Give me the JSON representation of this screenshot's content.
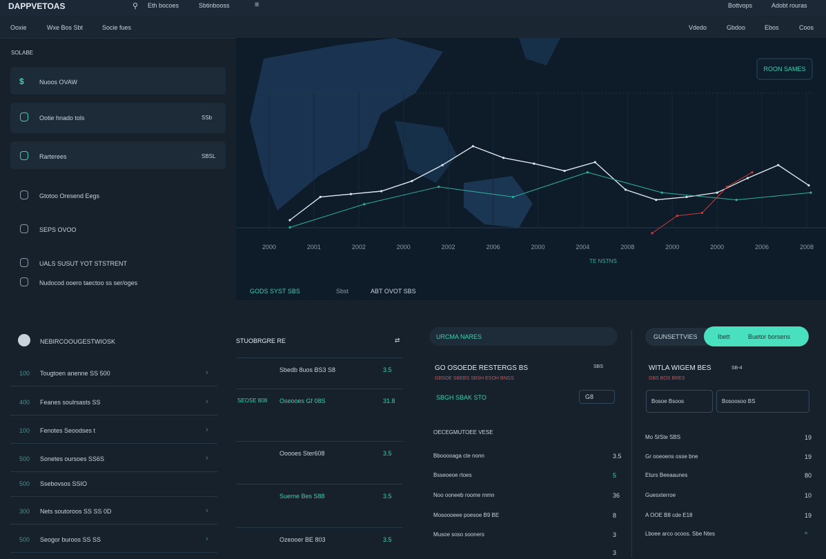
{
  "topbar": {
    "brand": "DAPPVETOAS",
    "search": "Eth bocoes",
    "tab": "Sbtinbooss",
    "right": [
      "Bottvops",
      "Adobt rouras"
    ]
  },
  "nav": {
    "left": [
      "Ooxie",
      "Wxe Bos Sbt",
      "Socie fues"
    ],
    "right": [
      "Vdedo",
      "Gbdoo",
      "Ebos",
      "Coos"
    ]
  },
  "sidebar": {
    "title": "SOLABE",
    "items": [
      {
        "icon": "$",
        "label": "Nuoos OVAW"
      },
      {
        "label": "Ootie hnado tols",
        "meta": "SSb"
      },
      {
        "label": "Rarterees",
        "meta": "SBSL"
      },
      {
        "label": "Gtotoo Oresend Eegs"
      },
      {
        "label": "SEPS OVOO"
      },
      {
        "label": "UALS SUSUT YOT STSTRENT"
      },
      {
        "label": "Nudocod ooero taectoo ss ser/oges"
      }
    ]
  },
  "chart": {
    "button": "ROON SAMES",
    "ylim": [
      0,
      100
    ],
    "x_labels": [
      "2000",
      "2001",
      "2002",
      "2000",
      "2002",
      "2006",
      "2000",
      "2004",
      "2008",
      "2000",
      "2000",
      "2006",
      "2008"
    ],
    "caption": "TE NSTNS",
    "series": [
      {
        "color": "#dfe6ee",
        "values": [
          10,
          26,
          28,
          30,
          37,
          48,
          61,
          53,
          49,
          44,
          50,
          31,
          24,
          26,
          29,
          39,
          48,
          34
        ]
      },
      {
        "color": "#2fb3a0",
        "values": [
          5,
          21,
          33,
          26,
          43,
          29,
          24,
          29
        ]
      },
      {
        "color": "#d23b3b",
        "values": [
          1,
          13,
          15,
          33,
          43
        ]
      }
    ],
    "tabs": [
      "GODS SYST SBS",
      "Sbst",
      "ABT OVOT SBS"
    ]
  },
  "list": {
    "header": "NEBIRCOOUGESTWIOSK",
    "rows": [
      [
        "100",
        "Tougtoen anenne SS 500"
      ],
      [
        "400",
        "Feanes soulrsasts SS"
      ],
      [
        "100",
        "Fenotes Seoodses t"
      ],
      [
        "500",
        "Sonetes oursoes SS6S"
      ],
      [
        "500",
        "Ssebovsos SSIO"
      ],
      [
        "300",
        "Nets soutoroos SS SS 0D"
      ],
      [
        "500",
        "Seogor buroos SS SS"
      ]
    ]
  },
  "orders": {
    "header": "STUOBRGRE RE",
    "rows": [
      [
        "",
        "Sbedb 8uos BS3 S8",
        "3.5"
      ],
      [
        "SEOSE 808",
        "Oseooes Gf 08S",
        "31.8"
      ],
      [
        "",
        "Ooooes Ster608",
        "3.5"
      ],
      [
        "",
        "Suerne Bes S88",
        "3.5"
      ],
      [
        "",
        "Ozeooer BE 803",
        "3.5"
      ]
    ]
  },
  "trade": {
    "title": "URCMA NARES",
    "heading": "GO OSOEDE RESTERGS BS",
    "meta": "SBS",
    "alert": "GBSOE SBEBS SBSH ESOH BNGS",
    "price": "SBGH SBAK STO",
    "input": "G8",
    "section": "OECEGMUTOEE VESE",
    "rows": [
      [
        "Bbooooaga cte nonn",
        "3.5"
      ],
      [
        "Bsseoeoe rtoes",
        "5"
      ],
      [
        "Noo ooneeb roome mmn",
        "36"
      ],
      [
        "Mosoooeee poesoe B9 BE",
        "8"
      ],
      [
        "Musoe soso sooners",
        "3"
      ],
      [
        "",
        "3"
      ]
    ]
  },
  "settings": {
    "tabs": [
      "GUNSETTVIES",
      "Ibett",
      "Buetor borsens"
    ],
    "heading": "WITLA WIGEM BES",
    "meta": "SB-4",
    "alert": "GBS BOS BRES",
    "inputs": [
      "Bosoe Bsoos",
      "Bosoosoo BS"
    ],
    "rows": [
      [
        "Mo SISte SBS",
        "19"
      ],
      [
        "Gr ooeoens osse bne",
        "19"
      ],
      [
        "Eturs Beeaaunes",
        "80"
      ],
      [
        "Guesxterroe",
        "10"
      ],
      [
        "A OOE B8 cde E18",
        "19"
      ],
      [
        "Lboee arco ocoos. Sbe Ntes",
        "^"
      ]
    ]
  }
}
